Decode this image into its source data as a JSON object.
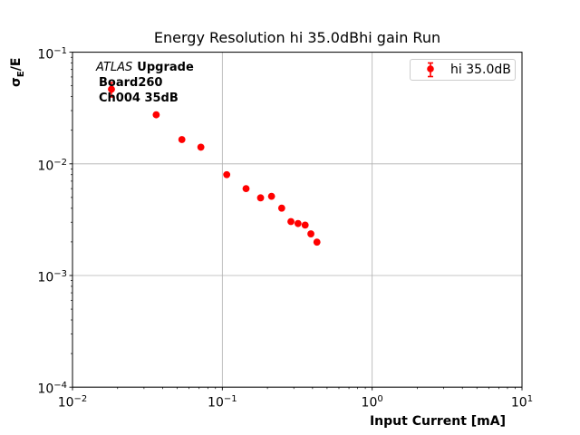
{
  "chart_data": {
    "type": "scatter",
    "title": "Energy Resolution hi 35.0dBhi gain Run",
    "xlabel": "Input Current [mA]",
    "ylabel": {
      "base": "σ",
      "subscript": "E",
      "suffix": "/E"
    },
    "xscale": "log",
    "yscale": "log",
    "xlim": [
      0.01,
      10
    ],
    "ylim": [
      0.0001,
      0.1
    ],
    "x_tick_exponents": [
      -2,
      -1,
      0,
      1
    ],
    "y_tick_exponents": [
      -1,
      -2,
      -3,
      -4
    ],
    "grid": "major-only",
    "legend_position": "upper-right",
    "colors": {
      "series": "#ff0000",
      "grid": "#b0b0b0",
      "axes": "#000000",
      "legend_border": "#cccccc"
    },
    "series": [
      {
        "name": "hi 35.0dB",
        "marker": "filled-circle-with-errorbar",
        "color": "#ff0000",
        "x": [
          0.0182,
          0.0362,
          0.0537,
          0.0719,
          0.107,
          0.144,
          0.18,
          0.213,
          0.249,
          0.287,
          0.32,
          0.357,
          0.39,
          0.428
        ],
        "y": [
          0.0466,
          0.0275,
          0.0165,
          0.0141,
          0.008,
          0.006,
          0.00496,
          0.00512,
          0.00401,
          0.00304,
          0.00292,
          0.00283,
          0.00236,
          0.00199
        ],
        "yerr": [
          0.007,
          0,
          0,
          0,
          0,
          0,
          0,
          0,
          0,
          0,
          0,
          0,
          0,
          0
        ]
      }
    ]
  },
  "legend": {
    "label": "hi 35.0dB"
  },
  "annotation": {
    "line1_italic": "ATLAS",
    "line1_bold": "Upgrade",
    "line2": "Board260",
    "line3": "Ch004 35dB"
  }
}
